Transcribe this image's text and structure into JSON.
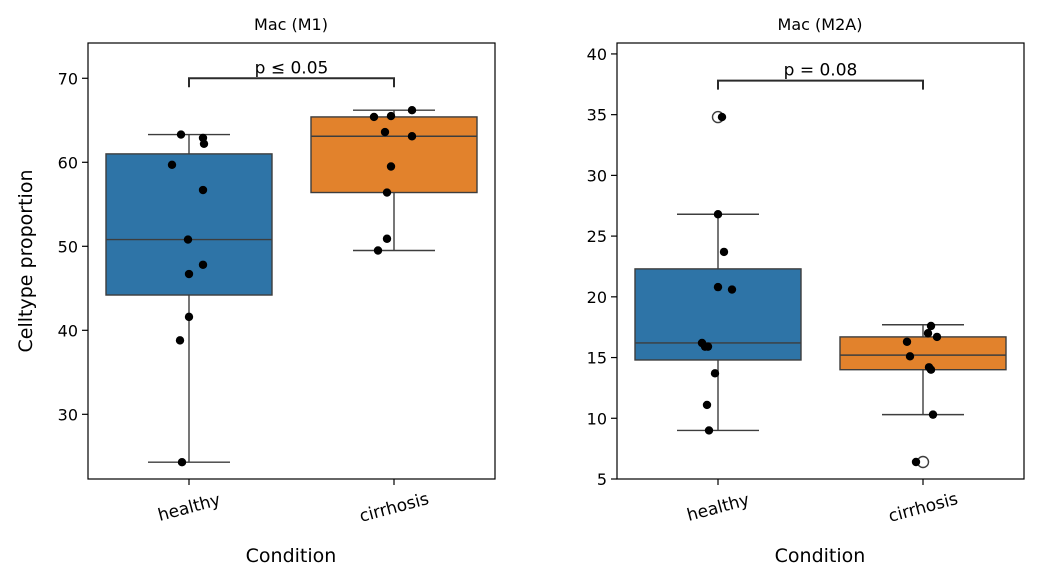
{
  "chart_data": [
    {
      "type": "box",
      "title": "Mac (M1)",
      "xlabel": "Condition",
      "ylabel": "Celltype proportion",
      "ylim": [
        22.3,
        74.2
      ],
      "yticks": [
        30,
        40,
        50,
        60,
        70
      ],
      "categories": [
        "healthy",
        "cirrhosis"
      ],
      "colors": [
        "#2e74a7",
        "#e2822c"
      ],
      "boxes": [
        {
          "category": "healthy",
          "q1": 44.2,
          "median": 50.8,
          "q3": 61.0,
          "whisker_low": 24.3,
          "whisker_high": 63.3,
          "outliers": []
        },
        {
          "category": "cirrhosis",
          "q1": 56.4,
          "median": 63.1,
          "q3": 65.4,
          "whisker_low": 49.5,
          "whisker_high": 66.2,
          "outliers": []
        }
      ],
      "points": [
        {
          "category": "healthy",
          "values": [
            63.3,
            62.9,
            62.2,
            59.7,
            56.7,
            50.8,
            47.8,
            46.7,
            41.6,
            38.8,
            24.3
          ]
        },
        {
          "category": "cirrhosis",
          "values": [
            66.2,
            65.4,
            65.5,
            63.6,
            63.1,
            59.5,
            56.4,
            50.9,
            49.5
          ]
        }
      ],
      "annotation": {
        "text": "p ≤ 0.05",
        "y": 70.0
      }
    },
    {
      "type": "box",
      "title": "Mac (M2A)",
      "xlabel": "Condition",
      "ylabel": "",
      "ylim": [
        5.0,
        40.9
      ],
      "yticks": [
        5,
        10,
        15,
        20,
        25,
        30,
        35,
        40
      ],
      "categories": [
        "healthy",
        "cirrhosis"
      ],
      "colors": [
        "#2e74a7",
        "#e2822c"
      ],
      "boxes": [
        {
          "category": "healthy",
          "q1": 14.8,
          "median": 16.2,
          "q3": 22.3,
          "whisker_low": 9.0,
          "whisker_high": 26.8,
          "outliers": [
            34.8
          ]
        },
        {
          "category": "cirrhosis",
          "q1": 14.0,
          "median": 15.2,
          "q3": 16.7,
          "whisker_low": 10.3,
          "whisker_high": 17.7,
          "outliers": [
            6.4
          ]
        }
      ],
      "points": [
        {
          "category": "healthy",
          "values": [
            34.8,
            26.8,
            23.7,
            20.8,
            20.6,
            16.2,
            15.9,
            15.9,
            13.7,
            11.1,
            9.0
          ]
        },
        {
          "category": "cirrhosis",
          "values": [
            17.6,
            17.0,
            16.7,
            16.3,
            15.1,
            14.2,
            14.0,
            10.3,
            6.4
          ]
        }
      ],
      "annotation": {
        "text": "p = 0.08",
        "y": 37.8
      }
    }
  ]
}
